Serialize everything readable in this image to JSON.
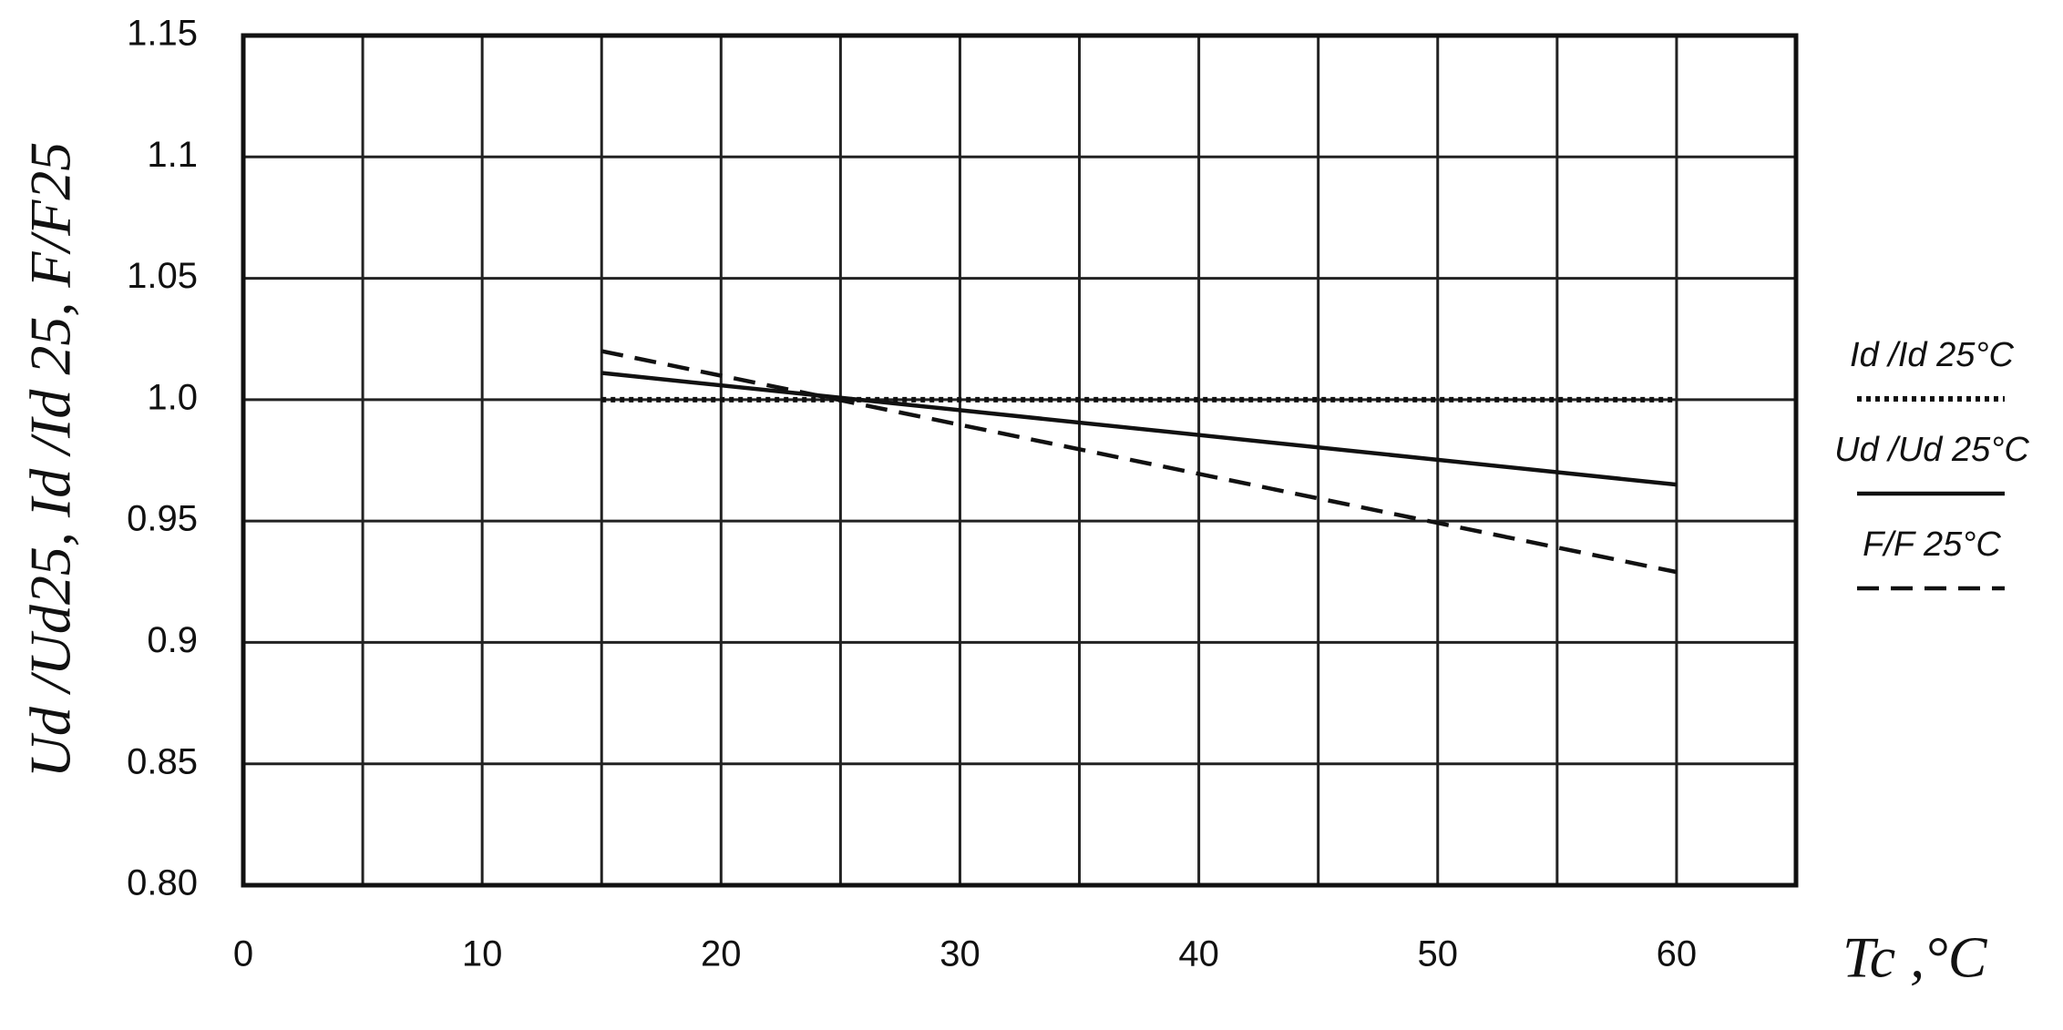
{
  "chart_data": {
    "type": "line",
    "x_label": "Tc ,°C",
    "y_label": "Ud /Ud25, Id /Id 25, F/F25",
    "xlim": [
      0,
      65
    ],
    "xticks": [
      0,
      10,
      20,
      30,
      40,
      50,
      60
    ],
    "x_gridlines": [
      0,
      5,
      10,
      15,
      20,
      25,
      30,
      35,
      40,
      45,
      50,
      55,
      60,
      65
    ],
    "ylim": [
      0.8,
      1.15
    ],
    "yticks": [
      {
        "value": 0.8,
        "label": "0.80"
      },
      0.85,
      0.9,
      0.95,
      {
        "value": 1,
        "label": "1.0"
      },
      1.05,
      1.1,
      1.15
    ],
    "grid": true,
    "x": [
      15,
      60
    ],
    "series": [
      {
        "name": "Id /Id 25°C",
        "color": "#111111",
        "style": "dotted",
        "values": [
          1.0,
          1.0
        ]
      },
      {
        "name": "Ud /Ud 25°C",
        "color": "#111111",
        "style": "solid",
        "values": [
          1.011,
          0.965
        ]
      },
      {
        "name": "F/F 25°C",
        "color": "#111111",
        "style": "dashed",
        "values": [
          1.02,
          0.929
        ]
      }
    ]
  }
}
